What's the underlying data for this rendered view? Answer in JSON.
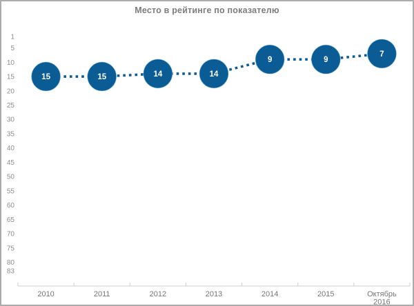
{
  "panel": {
    "title": "Место в рейтинге по показателю"
  },
  "colors": {
    "marker_fill": "#0b5c94",
    "marker_edge": "#8ec4e8",
    "marker_text": "#ffffff",
    "line": "#0b5c94",
    "title_text": "#7d7d7d",
    "y_label_text": "#8d8d8d",
    "x_label_text": "#757575",
    "axis_line": "#cfcfcf",
    "border": "#ababab",
    "background": "#ffffff"
  },
  "chart_data": {
    "type": "line",
    "title": "Место в рейтинге по показателю",
    "categories": [
      "2010",
      "2011",
      "2012",
      "2013",
      "2014",
      "2015",
      "Октябрь 2016"
    ],
    "values": [
      15,
      15,
      14,
      14,
      9,
      9,
      7
    ],
    "data_labels": [
      15,
      15,
      14,
      14,
      9,
      9,
      7
    ],
    "xlabel": "",
    "ylabel": "",
    "y_ticks": [
      1,
      5,
      10,
      15,
      20,
      25,
      30,
      35,
      40,
      45,
      50,
      55,
      60,
      65,
      70,
      75,
      80,
      83
    ],
    "ylim": [
      1,
      83
    ],
    "y_axis_inverted": true,
    "line_style": "dotted",
    "marker": "circle",
    "grid": false,
    "legend": "none"
  }
}
